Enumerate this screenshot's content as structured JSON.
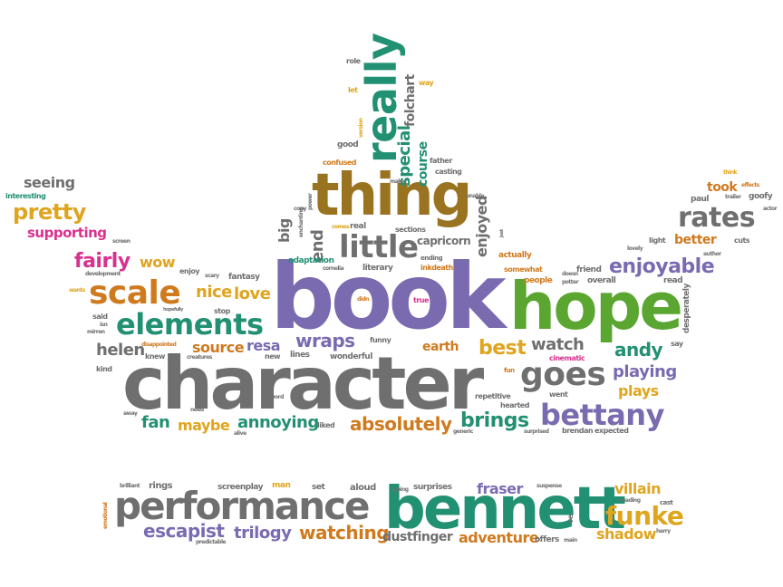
{
  "words": {
    "book": "book",
    "hope": "hope",
    "character": "character",
    "bennett": "bennett",
    "performance": "performance",
    "thing": "thing",
    "really": "really",
    "little": "little",
    "scale": "scale",
    "elements": "elements",
    "goes": "goes",
    "bettany": "bettany",
    "rates": "rates",
    "enjoyable": "enjoyable",
    "funke": "funke",
    "watching": "watching",
    "escapist": "escapist",
    "trilogy": "trilogy",
    "dustfinger": "dustfinger",
    "adventure": "adventure",
    "shadow": "shadow",
    "villain": "villain",
    "fraser": "fraser",
    "absolutely": "absolutely",
    "brings": "brings",
    "annoying": "annoying",
    "maybe": "maybe",
    "fan": "fan",
    "best": "best",
    "watch": "watch",
    "andy": "andy",
    "playing": "playing",
    "plays": "plays",
    "wraps": "wraps",
    "source": "source",
    "resa": "resa",
    "helen": "helen",
    "love": "love",
    "nice": "nice",
    "wow": "wow",
    "fairly": "fairly",
    "pretty": "pretty",
    "supporting": "supporting",
    "seeing": "seeing",
    "interesting": "interesting",
    "special": "special",
    "course": "course",
    "folchart": "folchart",
    "enjoyed": "enjoyed",
    "capricorn": "capricorn",
    "end": "end",
    "big": "big",
    "took": "took",
    "better": "better",
    "earth": "earth",
    "rings": "rings",
    "screenplay": "screenplay",
    "man": "man",
    "set": "set",
    "aloud": "aloud",
    "surprises": "surprises",
    "goofy": "goofy",
    "paul": "paul",
    "actor": "actor",
    "trailer": "trailer",
    "effects": "effects",
    "think": "think",
    "cuts": "cuts",
    "light": "light",
    "lovely": "lovely",
    "author": "author",
    "desperately": "desperately",
    "say": "say",
    "read": "read",
    "friend": "friend",
    "doesn": "doesn",
    "potter": "potter",
    "overall": "overall",
    "people": "people",
    "somewhat": "somewhat",
    "actually": "actually",
    "cinematic": "cinematic",
    "went": "went",
    "repetitive": "repetitive",
    "hearted": "hearted",
    "fun": "fun",
    "true": "true",
    "didn": "didn",
    "funny": "funny",
    "wonderful": "wonderful",
    "lines": "lines",
    "new": "new",
    "liked": "liked",
    "word": "word",
    "alive": "alive",
    "need": "need",
    "away": "away",
    "kind": "kind",
    "knew": "knew",
    "creatures": "creatures",
    "disappointed": "disappointed",
    "hopefully": "hopefully",
    "stop": "stop",
    "fantasy": "fantasy",
    "scary": "scary",
    "enjoy": "enjoy",
    "development": "development",
    "wants": "wants",
    "said": "said",
    "isn": "isn",
    "mirren": "mirren",
    "screen": "screen",
    "adaptation": "adaptation",
    "copy": "copy",
    "enchanting": "enchanting",
    "power": "power",
    "comes": "comes",
    "real": "real",
    "sections": "sections",
    "literary": "literary",
    "inkdeath": "inkdeath",
    "cornelia": "cornelia",
    "casting": "casting",
    "father": "father",
    "make": "make",
    "ending": "ending",
    "confused": "confused",
    "good": "good",
    "version": "version",
    "role": "role",
    "let": "let",
    "way": "way",
    "unable": "unable",
    "just": "just",
    "brilliant": "brilliant",
    "emotional": "emotional",
    "predictable": "predictable",
    "suspense": "suspense",
    "reading": "reading",
    "cast": "cast",
    "harry": "harry",
    "main": "main",
    "offers": "offers",
    "going": "going",
    "ve": "ve",
    "generic": "generic",
    "surprised": "surprised",
    "brendan": "brendan",
    "expected": "expected"
  }
}
